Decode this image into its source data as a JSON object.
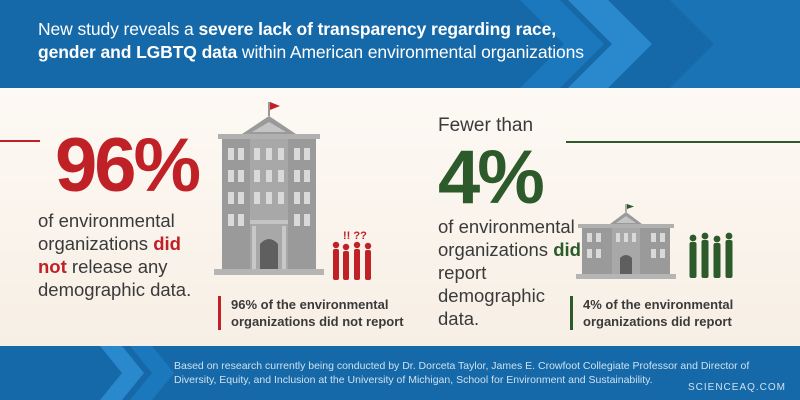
{
  "header": {
    "part1": "New study reveals a ",
    "bold1": "severe lack of transparency regarding race,",
    "bold2": "gender and LGBTQ data",
    "part2": " within American environmental organizations"
  },
  "left": {
    "stat": "96%",
    "desc_a": "of environmental organizations ",
    "desc_hl1": "did",
    "desc_hl2": "not",
    "desc_b": " release any demographic data.",
    "caption_line1": "96% of the environmental",
    "caption_line2": "organizations did not report",
    "question_marks": "!! ??"
  },
  "right": {
    "prefix": "Fewer than",
    "stat": "4%",
    "desc_a": "of environmental organizations ",
    "desc_hl": "did",
    "desc_b": " report demographic data.",
    "caption_line1": "4% of the environmental",
    "caption_line2": "organizations did report"
  },
  "footer": {
    "text": "Based on research currently being conducted by Dr. Dorceta Taylor, James E. Crowfoot Collegiate Professor and Director of Diversity, Equity, and Inclusion at the University of Michigan, School for Environment and Sustainability.",
    "watermark": "SCIENCEAQ.COM"
  },
  "colors": {
    "blue": "#1669a8",
    "red": "#c02126",
    "green": "#2d5a2a",
    "building": "#9a9a9a",
    "cream": "#fbf5ee"
  },
  "icons": [
    "building-icon",
    "flag-icon",
    "people-icon",
    "chevron-icon"
  ]
}
